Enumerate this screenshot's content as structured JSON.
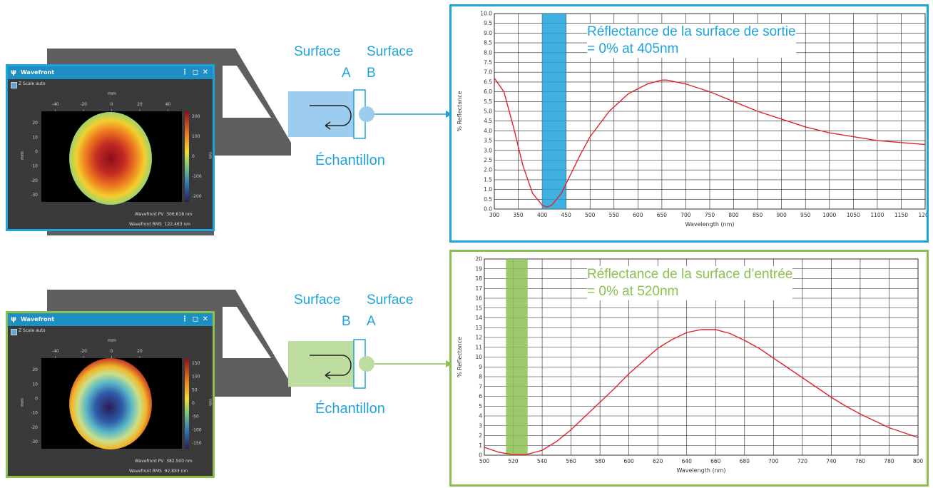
{
  "colors": {
    "top_accent": "#1fa3dc",
    "bottom_accent": "#8cc152",
    "device_gray": "#5a5a5a",
    "curve": "#e0242b"
  },
  "top": {
    "window": {
      "title": "Wavefront",
      "checkbox_label": "Z Scale auto",
      "x_unit": "mm",
      "y_unit": "mm",
      "z_unit": "nm",
      "x_ticks": [
        "-40",
        "-20",
        "0",
        "20",
        "40"
      ],
      "y_ticks": [
        "20",
        "10",
        "0",
        "-10",
        "-20",
        "-30"
      ],
      "z_ticks": [
        "200",
        "100",
        "0",
        "-100",
        "-200"
      ],
      "pv_label": "Wavefront PV",
      "pv_value": "306,618",
      "pv_unit": "nm",
      "rms_label": "Wavefront RMS",
      "rms_value": "122,463",
      "rms_unit": "nm"
    },
    "surface_left": {
      "word": "Surface",
      "letter": "A"
    },
    "surface_right": {
      "word": "Surface",
      "letter": "B"
    },
    "sample_label": "Échantillon",
    "note_line1": "Réflectance de la surface de sortie",
    "note_line2": "= 0% at 405nm"
  },
  "bottom": {
    "window": {
      "title": "Wavefront",
      "checkbox_label": "Z Scale auto",
      "x_unit": "mm",
      "y_unit": "mm",
      "z_unit": "nm",
      "x_ticks": [
        "-40",
        "-20",
        "0",
        "20"
      ],
      "y_ticks": [
        "20",
        "10",
        "0",
        "-10",
        "-20",
        "-30"
      ],
      "z_ticks": [
        "150",
        "100",
        "50",
        "0",
        "-50",
        "-100",
        "-150"
      ],
      "pv_label": "Wavefront PV",
      "pv_value": "382,500",
      "pv_unit": "nm",
      "rms_label": "Wavefront RMS",
      "rms_value": "92,893",
      "rms_unit": "nm"
    },
    "surface_left": {
      "word": "Surface",
      "letter": "B"
    },
    "surface_right": {
      "word": "Surface",
      "letter": "A"
    },
    "sample_label": "Échantillon",
    "note_line1": "Réflectance de la surface d’entrée",
    "note_line2": "= 0% at 520nm"
  },
  "chart_data": [
    {
      "type": "line",
      "xlabel": "Wavelength (nm)",
      "ylabel": "% Reflectance",
      "xlim": [
        300,
        1200
      ],
      "ylim": [
        0,
        10
      ],
      "x_ticks": [
        300,
        350,
        400,
        450,
        500,
        550,
        600,
        650,
        700,
        750,
        800,
        850,
        900,
        950,
        1000,
        1050,
        1100,
        1150,
        1200
      ],
      "y_ticks": [
        0,
        0.5,
        1,
        1.5,
        2,
        2.5,
        3,
        3.5,
        4,
        4.5,
        5,
        5.5,
        6,
        6.5,
        7,
        7.5,
        8,
        8.5,
        9,
        9.5,
        10
      ],
      "grid": true,
      "highlight_band": [
        400,
        450
      ],
      "series": [
        {
          "x": [
            300,
            320,
            340,
            360,
            380,
            400,
            410,
            420,
            440,
            460,
            480,
            500,
            540,
            580,
            620,
            650,
            660,
            680,
            700,
            750,
            800,
            850,
            900,
            950,
            1000,
            1050,
            1100,
            1150,
            1200
          ],
          "y": [
            6.7,
            6.0,
            4.2,
            2.2,
            0.8,
            0.2,
            0.1,
            0.2,
            0.8,
            1.8,
            2.8,
            3.7,
            5.0,
            5.9,
            6.4,
            6.6,
            6.6,
            6.5,
            6.4,
            6.0,
            5.5,
            5.0,
            4.6,
            4.2,
            3.9,
            3.7,
            3.5,
            3.4,
            3.3
          ]
        }
      ]
    },
    {
      "type": "line",
      "xlabel": "Wavelength (nm)",
      "ylabel": "% Reflectance",
      "xlim": [
        500,
        800
      ],
      "ylim": [
        0,
        20
      ],
      "x_ticks": [
        500,
        520,
        540,
        560,
        580,
        600,
        620,
        640,
        660,
        680,
        700,
        720,
        740,
        760,
        780,
        800
      ],
      "y_ticks": [
        0,
        1,
        2,
        3,
        4,
        5,
        6,
        7,
        8,
        9,
        10,
        11,
        12,
        13,
        14,
        15,
        16,
        17,
        18,
        19,
        20
      ],
      "grid": true,
      "highlight_band": [
        515,
        530
      ],
      "series": [
        {
          "x": [
            500,
            510,
            520,
            530,
            540,
            550,
            560,
            570,
            580,
            590,
            600,
            610,
            620,
            630,
            640,
            650,
            660,
            670,
            680,
            690,
            700,
            710,
            720,
            730,
            740,
            750,
            760,
            770,
            780,
            790,
            800
          ],
          "y": [
            0.8,
            0.3,
            0.05,
            0.1,
            0.5,
            1.4,
            2.6,
            4.0,
            5.4,
            6.8,
            8.3,
            9.6,
            10.9,
            11.8,
            12.5,
            12.8,
            12.8,
            12.4,
            11.7,
            10.9,
            9.9,
            8.9,
            7.9,
            6.9,
            5.9,
            5.0,
            4.2,
            3.5,
            2.8,
            2.3,
            1.8
          ]
        }
      ]
    }
  ]
}
